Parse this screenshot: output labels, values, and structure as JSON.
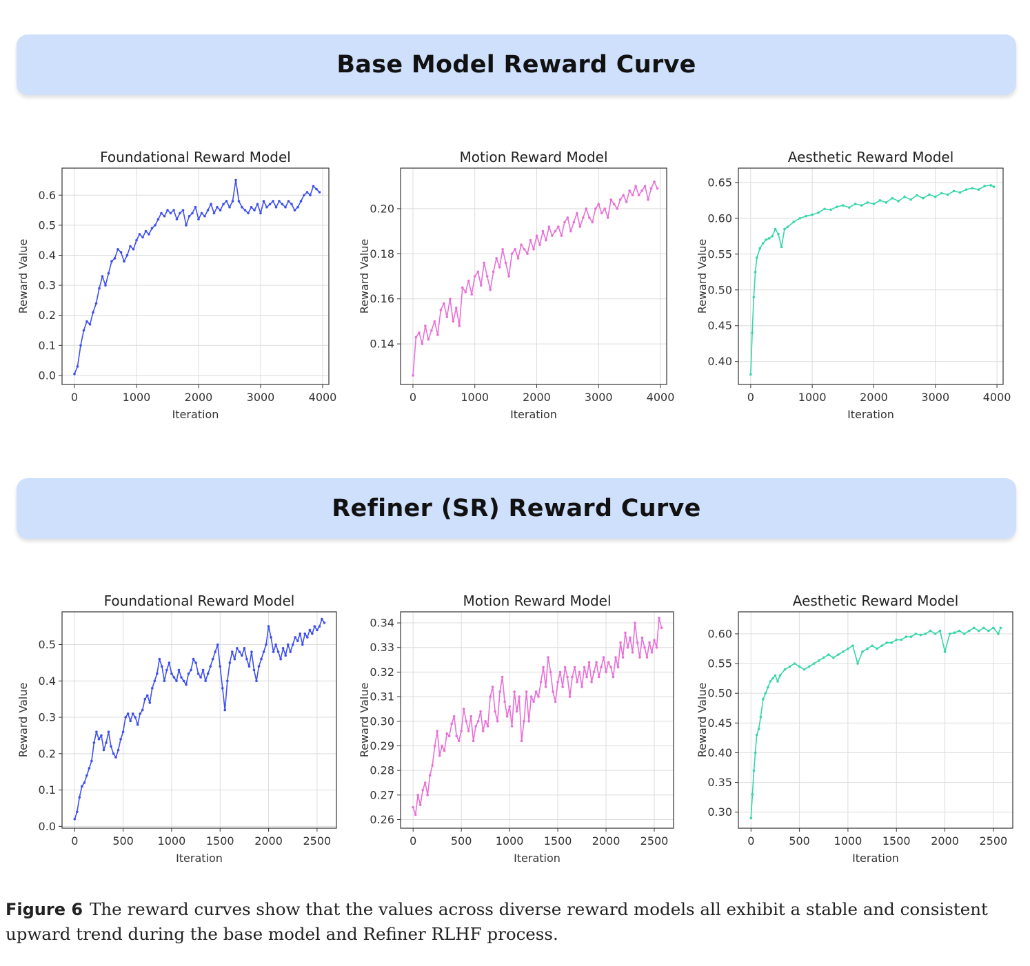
{
  "banners": {
    "base": "Base Model Reward Curve",
    "refiner": "Refiner (SR) Reward Curve"
  },
  "caption": {
    "label": "Figure 6",
    "text": "The reward curves show that the values across diverse reward models all exhibit a stable and consistent upward trend during the base model and Refiner RLHF process."
  },
  "chart_data": [
    {
      "id": "base-foundational",
      "type": "line",
      "color": "#3d4ff0",
      "title": "Foundational Reward Model",
      "xlabel": "Iteration",
      "ylabel": "Reward Value",
      "xlim": [
        -200,
        4100
      ],
      "ylim": [
        -0.03,
        0.69
      ],
      "xticks": [
        0,
        1000,
        2000,
        3000,
        4000
      ],
      "yticks": [
        0.0,
        0.1,
        0.2,
        0.3,
        0.4,
        0.5,
        0.6
      ],
      "ytick_decimals": 1,
      "grid": true,
      "x": [
        0,
        50,
        100,
        150,
        200,
        250,
        300,
        350,
        400,
        450,
        500,
        550,
        600,
        650,
        700,
        750,
        800,
        850,
        900,
        950,
        1000,
        1050,
        1100,
        1150,
        1200,
        1250,
        1300,
        1350,
        1400,
        1450,
        1500,
        1550,
        1600,
        1650,
        1700,
        1750,
        1800,
        1850,
        1900,
        1950,
        2000,
        2050,
        2100,
        2150,
        2200,
        2250,
        2300,
        2350,
        2400,
        2450,
        2500,
        2550,
        2600,
        2650,
        2700,
        2750,
        2800,
        2850,
        2900,
        2950,
        3000,
        3050,
        3100,
        3150,
        3200,
        3250,
        3300,
        3350,
        3400,
        3450,
        3500,
        3550,
        3600,
        3650,
        3700,
        3750,
        3800,
        3850,
        3900,
        3950
      ],
      "y": [
        0.005,
        0.03,
        0.1,
        0.15,
        0.18,
        0.17,
        0.21,
        0.24,
        0.29,
        0.33,
        0.3,
        0.34,
        0.38,
        0.39,
        0.42,
        0.41,
        0.38,
        0.4,
        0.43,
        0.42,
        0.45,
        0.47,
        0.46,
        0.48,
        0.47,
        0.49,
        0.5,
        0.52,
        0.54,
        0.53,
        0.55,
        0.54,
        0.55,
        0.52,
        0.54,
        0.55,
        0.5,
        0.53,
        0.54,
        0.56,
        0.52,
        0.54,
        0.53,
        0.55,
        0.57,
        0.54,
        0.56,
        0.55,
        0.57,
        0.58,
        0.56,
        0.58,
        0.65,
        0.58,
        0.56,
        0.55,
        0.54,
        0.56,
        0.55,
        0.57,
        0.54,
        0.58,
        0.56,
        0.57,
        0.58,
        0.56,
        0.58,
        0.57,
        0.56,
        0.58,
        0.57,
        0.55,
        0.56,
        0.58,
        0.6,
        0.61,
        0.6,
        0.63,
        0.62,
        0.61
      ]
    },
    {
      "id": "base-motion",
      "type": "line",
      "color": "#e96fd6",
      "title": "Motion Reward Model",
      "xlabel": "Iteration",
      "ylabel": "Reward Value",
      "xlim": [
        -200,
        4100
      ],
      "ylim": [
        0.122,
        0.218
      ],
      "xticks": [
        0,
        1000,
        2000,
        3000,
        4000
      ],
      "yticks": [
        0.14,
        0.16,
        0.18,
        0.2
      ],
      "ytick_decimals": 2,
      "grid": true,
      "x": [
        0,
        50,
        100,
        150,
        200,
        250,
        300,
        350,
        400,
        450,
        500,
        550,
        600,
        650,
        700,
        750,
        800,
        850,
        900,
        950,
        1000,
        1050,
        1100,
        1150,
        1200,
        1250,
        1300,
        1350,
        1400,
        1450,
        1500,
        1550,
        1600,
        1650,
        1700,
        1750,
        1800,
        1850,
        1900,
        1950,
        2000,
        2050,
        2100,
        2150,
        2200,
        2250,
        2300,
        2350,
        2400,
        2450,
        2500,
        2550,
        2600,
        2650,
        2700,
        2750,
        2800,
        2850,
        2900,
        2950,
        3000,
        3050,
        3100,
        3150,
        3200,
        3250,
        3300,
        3350,
        3400,
        3450,
        3500,
        3550,
        3600,
        3650,
        3700,
        3750,
        3800,
        3850,
        3900,
        3950
      ],
      "y": [
        0.126,
        0.143,
        0.145,
        0.14,
        0.148,
        0.142,
        0.146,
        0.15,
        0.144,
        0.155,
        0.158,
        0.152,
        0.16,
        0.15,
        0.156,
        0.148,
        0.165,
        0.163,
        0.168,
        0.162,
        0.17,
        0.172,
        0.166,
        0.176,
        0.17,
        0.164,
        0.172,
        0.178,
        0.174,
        0.182,
        0.176,
        0.17,
        0.18,
        0.182,
        0.178,
        0.184,
        0.182,
        0.18,
        0.186,
        0.182,
        0.188,
        0.184,
        0.19,
        0.186,
        0.192,
        0.188,
        0.19,
        0.192,
        0.188,
        0.194,
        0.196,
        0.19,
        0.194,
        0.198,
        0.192,
        0.196,
        0.2,
        0.196,
        0.194,
        0.2,
        0.202,
        0.198,
        0.2,
        0.196,
        0.204,
        0.202,
        0.2,
        0.204,
        0.206,
        0.203,
        0.208,
        0.206,
        0.21,
        0.206,
        0.208,
        0.21,
        0.204,
        0.209,
        0.212,
        0.209
      ]
    },
    {
      "id": "base-aesthetic",
      "type": "line",
      "color": "#36d6a9",
      "title": "Aesthetic Reward Model",
      "xlabel": "Iteration",
      "ylabel": "Reward Value",
      "xlim": [
        -200,
        4100
      ],
      "ylim": [
        0.368,
        0.67
      ],
      "xticks": [
        0,
        1000,
        2000,
        3000,
        4000
      ],
      "yticks": [
        0.4,
        0.45,
        0.5,
        0.55,
        0.6,
        0.65
      ],
      "ytick_decimals": 2,
      "grid": true,
      "x": [
        0,
        25,
        50,
        75,
        100,
        150,
        200,
        250,
        300,
        350,
        400,
        450,
        500,
        550,
        600,
        700,
        800,
        900,
        1000,
        1100,
        1200,
        1300,
        1400,
        1500,
        1600,
        1700,
        1800,
        1900,
        2000,
        2100,
        2200,
        2300,
        2400,
        2500,
        2600,
        2700,
        2800,
        2900,
        3000,
        3100,
        3200,
        3300,
        3400,
        3500,
        3600,
        3700,
        3800,
        3900,
        3950
      ],
      "y": [
        0.382,
        0.44,
        0.49,
        0.525,
        0.545,
        0.558,
        0.565,
        0.57,
        0.572,
        0.575,
        0.585,
        0.578,
        0.56,
        0.585,
        0.588,
        0.595,
        0.6,
        0.603,
        0.605,
        0.608,
        0.613,
        0.612,
        0.616,
        0.618,
        0.615,
        0.62,
        0.618,
        0.622,
        0.62,
        0.625,
        0.622,
        0.628,
        0.624,
        0.63,
        0.626,
        0.632,
        0.628,
        0.633,
        0.63,
        0.635,
        0.633,
        0.638,
        0.636,
        0.64,
        0.642,
        0.64,
        0.645,
        0.646,
        0.644
      ]
    },
    {
      "id": "refiner-foundational",
      "type": "line",
      "color": "#3d4ff0",
      "title": "Foundational Reward Model",
      "xlabel": "Iteration",
      "ylabel": "Reward Value",
      "xlim": [
        -130,
        2700
      ],
      "ylim": [
        -0.005,
        0.59
      ],
      "xticks": [
        0,
        500,
        1000,
        1500,
        2000,
        2500
      ],
      "yticks": [
        0.0,
        0.1,
        0.2,
        0.3,
        0.4,
        0.5
      ],
      "ytick_decimals": 1,
      "grid": true,
      "x": [
        0,
        25,
        50,
        75,
        100,
        125,
        150,
        175,
        200,
        225,
        250,
        275,
        300,
        325,
        350,
        375,
        400,
        425,
        450,
        475,
        500,
        525,
        550,
        575,
        600,
        625,
        650,
        675,
        700,
        725,
        750,
        775,
        800,
        825,
        850,
        875,
        900,
        925,
        950,
        975,
        1000,
        1025,
        1050,
        1075,
        1100,
        1125,
        1150,
        1175,
        1200,
        1225,
        1250,
        1275,
        1300,
        1325,
        1350,
        1375,
        1400,
        1425,
        1450,
        1475,
        1500,
        1525,
        1550,
        1575,
        1600,
        1625,
        1650,
        1675,
        1700,
        1725,
        1750,
        1775,
        1800,
        1825,
        1850,
        1875,
        1900,
        1925,
        1950,
        1975,
        2000,
        2025,
        2050,
        2075,
        2100,
        2125,
        2150,
        2175,
        2200,
        2225,
        2250,
        2275,
        2300,
        2325,
        2350,
        2375,
        2400,
        2425,
        2450,
        2475,
        2500,
        2525,
        2550,
        2575
      ],
      "y": [
        0.02,
        0.04,
        0.08,
        0.11,
        0.12,
        0.14,
        0.16,
        0.18,
        0.23,
        0.26,
        0.24,
        0.25,
        0.21,
        0.23,
        0.26,
        0.22,
        0.2,
        0.19,
        0.21,
        0.24,
        0.26,
        0.3,
        0.31,
        0.29,
        0.31,
        0.3,
        0.28,
        0.31,
        0.32,
        0.35,
        0.36,
        0.34,
        0.38,
        0.4,
        0.42,
        0.46,
        0.44,
        0.4,
        0.43,
        0.45,
        0.42,
        0.41,
        0.4,
        0.43,
        0.41,
        0.4,
        0.39,
        0.42,
        0.43,
        0.46,
        0.45,
        0.42,
        0.41,
        0.43,
        0.4,
        0.42,
        0.44,
        0.46,
        0.48,
        0.5,
        0.44,
        0.38,
        0.32,
        0.4,
        0.45,
        0.48,
        0.46,
        0.49,
        0.48,
        0.47,
        0.49,
        0.46,
        0.44,
        0.48,
        0.43,
        0.4,
        0.44,
        0.46,
        0.48,
        0.5,
        0.55,
        0.52,
        0.48,
        0.5,
        0.48,
        0.46,
        0.49,
        0.47,
        0.5,
        0.48,
        0.5,
        0.52,
        0.51,
        0.53,
        0.5,
        0.53,
        0.52,
        0.54,
        0.53,
        0.55,
        0.54,
        0.55,
        0.57,
        0.56
      ]
    },
    {
      "id": "refiner-motion",
      "type": "line",
      "color": "#e96fd6",
      "title": "Motion Reward Model",
      "xlabel": "Iteration",
      "ylabel": "Reward Value",
      "xlim": [
        -130,
        2700
      ],
      "ylim": [
        0.2565,
        0.3445
      ],
      "xticks": [
        0,
        500,
        1000,
        1500,
        2000,
        2500
      ],
      "yticks": [
        0.26,
        0.27,
        0.28,
        0.29,
        0.3,
        0.31,
        0.32,
        0.33,
        0.34
      ],
      "ytick_decimals": 2,
      "grid": true,
      "x": [
        0,
        25,
        50,
        75,
        100,
        125,
        150,
        175,
        200,
        225,
        250,
        275,
        300,
        325,
        350,
        375,
        400,
        425,
        450,
        475,
        500,
        525,
        550,
        575,
        600,
        625,
        650,
        675,
        700,
        725,
        750,
        775,
        800,
        825,
        850,
        875,
        900,
        925,
        950,
        975,
        1000,
        1025,
        1050,
        1075,
        1100,
        1125,
        1150,
        1175,
        1200,
        1225,
        1250,
        1275,
        1300,
        1325,
        1350,
        1375,
        1400,
        1425,
        1450,
        1475,
        1500,
        1525,
        1550,
        1575,
        1600,
        1625,
        1650,
        1675,
        1700,
        1725,
        1750,
        1775,
        1800,
        1825,
        1850,
        1875,
        1900,
        1925,
        1950,
        1975,
        2000,
        2025,
        2050,
        2075,
        2100,
        2125,
        2150,
        2175,
        2200,
        2225,
        2250,
        2275,
        2300,
        2325,
        2350,
        2375,
        2400,
        2425,
        2450,
        2475,
        2500,
        2525,
        2550,
        2575
      ],
      "y": [
        0.265,
        0.262,
        0.27,
        0.266,
        0.272,
        0.275,
        0.27,
        0.278,
        0.282,
        0.29,
        0.296,
        0.286,
        0.29,
        0.288,
        0.295,
        0.294,
        0.299,
        0.302,
        0.294,
        0.292,
        0.296,
        0.305,
        0.3,
        0.296,
        0.302,
        0.292,
        0.298,
        0.3,
        0.304,
        0.296,
        0.3,
        0.298,
        0.31,
        0.314,
        0.304,
        0.3,
        0.312,
        0.318,
        0.308,
        0.302,
        0.306,
        0.298,
        0.312,
        0.304,
        0.31,
        0.292,
        0.3,
        0.312,
        0.3,
        0.31,
        0.308,
        0.312,
        0.31,
        0.316,
        0.322,
        0.314,
        0.326,
        0.32,
        0.312,
        0.308,
        0.316,
        0.32,
        0.314,
        0.322,
        0.318,
        0.31,
        0.318,
        0.322,
        0.316,
        0.32,
        0.314,
        0.322,
        0.318,
        0.324,
        0.316,
        0.32,
        0.324,
        0.318,
        0.322,
        0.326,
        0.32,
        0.324,
        0.322,
        0.318,
        0.326,
        0.322,
        0.332,
        0.326,
        0.336,
        0.33,
        0.334,
        0.328,
        0.34,
        0.332,
        0.326,
        0.334,
        0.33,
        0.326,
        0.332,
        0.328,
        0.333,
        0.33,
        0.342,
        0.338
      ]
    },
    {
      "id": "refiner-aesthetic",
      "type": "line",
      "color": "#36d6a9",
      "title": "Aesthetic Reward Model",
      "xlabel": "Iteration",
      "ylabel": "Reward Value",
      "xlim": [
        -130,
        2700
      ],
      "ylim": [
        0.273,
        0.637
      ],
      "xticks": [
        0,
        500,
        1000,
        1500,
        2000,
        2500
      ],
      "yticks": [
        0.3,
        0.35,
        0.4,
        0.45,
        0.5,
        0.55,
        0.6
      ],
      "ytick_decimals": 2,
      "grid": true,
      "x": [
        0,
        15,
        30,
        45,
        60,
        80,
        100,
        125,
        150,
        175,
        200,
        225,
        250,
        275,
        300,
        350,
        400,
        450,
        500,
        550,
        600,
        650,
        700,
        750,
        800,
        850,
        900,
        950,
        1000,
        1050,
        1100,
        1150,
        1200,
        1250,
        1300,
        1350,
        1400,
        1450,
        1500,
        1550,
        1600,
        1650,
        1700,
        1750,
        1800,
        1850,
        1900,
        1950,
        2000,
        2050,
        2100,
        2150,
        2200,
        2250,
        2300,
        2350,
        2400,
        2450,
        2500,
        2550,
        2575
      ],
      "y": [
        0.29,
        0.33,
        0.37,
        0.4,
        0.43,
        0.44,
        0.46,
        0.49,
        0.5,
        0.51,
        0.52,
        0.525,
        0.53,
        0.52,
        0.53,
        0.54,
        0.545,
        0.55,
        0.545,
        0.54,
        0.545,
        0.55,
        0.555,
        0.56,
        0.565,
        0.56,
        0.565,
        0.57,
        0.575,
        0.58,
        0.55,
        0.57,
        0.575,
        0.58,
        0.575,
        0.58,
        0.585,
        0.585,
        0.59,
        0.59,
        0.595,
        0.595,
        0.6,
        0.598,
        0.6,
        0.605,
        0.6,
        0.605,
        0.57,
        0.6,
        0.602,
        0.605,
        0.6,
        0.605,
        0.61,
        0.605,
        0.61,
        0.605,
        0.61,
        0.6,
        0.61
      ]
    }
  ]
}
